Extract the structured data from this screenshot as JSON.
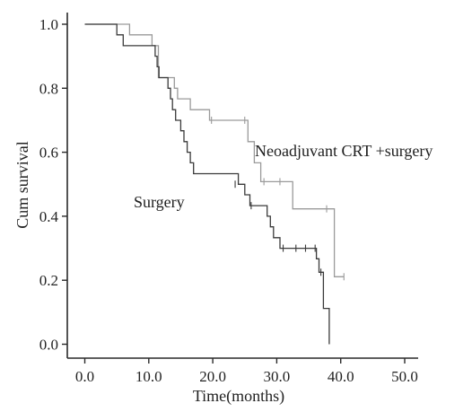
{
  "chart_data": {
    "type": "line",
    "subtype": "kaplan-meier step survival curve",
    "title": "",
    "xlabel": "Time(months)",
    "ylabel": "Cum survival",
    "xlim": [
      0,
      50
    ],
    "ylim": [
      0,
      1.0
    ],
    "x_ticks": [
      0,
      10,
      20,
      30,
      40,
      50
    ],
    "x_tick_labels": [
      "0.0",
      "10.0",
      "20.0",
      "30.0",
      "40.0",
      "50.0"
    ],
    "y_ticks": [
      0,
      0.2,
      0.4,
      0.6,
      0.8,
      1.0
    ],
    "y_tick_labels": [
      "0.0",
      "0.2",
      "0.4",
      "0.6",
      "0.8",
      "1.0"
    ],
    "grid": false,
    "legend": "none (series labeled directly on plot)",
    "series": [
      {
        "name": "Neoadjuvant CRT +surgery",
        "color": "#9a9a9a",
        "steps": [
          [
            0,
            1.0
          ],
          [
            7,
            0.967
          ],
          [
            10.5,
            0.933
          ],
          [
            11.5,
            0.833
          ],
          [
            14,
            0.8
          ],
          [
            14.5,
            0.767
          ],
          [
            16.5,
            0.733
          ],
          [
            19.5,
            0.7
          ],
          [
            25.5,
            0.633
          ],
          [
            26.5,
            0.567
          ],
          [
            27.5,
            0.508
          ],
          [
            32.5,
            0.423
          ],
          [
            39,
            0.211
          ]
        ],
        "end_x": 40.5,
        "censored": [
          [
            19.8,
            0.7
          ],
          [
            25,
            0.7
          ],
          [
            28,
            0.508
          ],
          [
            30.5,
            0.508
          ],
          [
            37.8,
            0.423
          ],
          [
            40.5,
            0.211
          ]
        ]
      },
      {
        "name": "Surgery",
        "color": "#3a3a3a",
        "steps": [
          [
            0,
            1.0
          ],
          [
            5,
            0.967
          ],
          [
            6,
            0.933
          ],
          [
            11,
            0.9
          ],
          [
            11.3,
            0.867
          ],
          [
            11.6,
            0.833
          ],
          [
            13,
            0.8
          ],
          [
            13.4,
            0.767
          ],
          [
            13.7,
            0.733
          ],
          [
            14.2,
            0.7
          ],
          [
            15,
            0.667
          ],
          [
            15.5,
            0.633
          ],
          [
            16,
            0.6
          ],
          [
            16.5,
            0.567
          ],
          [
            17,
            0.533
          ],
          [
            24,
            0.5
          ],
          [
            25,
            0.467
          ],
          [
            25.8,
            0.433
          ],
          [
            28.5,
            0.4
          ],
          [
            29,
            0.367
          ],
          [
            29.5,
            0.333
          ],
          [
            30.5,
            0.3
          ],
          [
            36.2,
            0.267
          ],
          [
            36.6,
            0.225
          ],
          [
            37.3,
            0.112
          ],
          [
            38.2,
            0.0
          ]
        ],
        "end_x": 38.2,
        "censored": [
          [
            23.5,
            0.5
          ],
          [
            26,
            0.433
          ],
          [
            31,
            0.3
          ],
          [
            33,
            0.3
          ],
          [
            34.5,
            0.3
          ],
          [
            36,
            0.3
          ],
          [
            36.9,
            0.225
          ]
        ]
      }
    ],
    "annotations": [
      {
        "text": "Neoadjuvant CRT +surgery",
        "series": "Neoadjuvant CRT +surgery",
        "anchor_x": 26.5,
        "anchor_y": 0.6
      },
      {
        "text": "Surgery",
        "series": "Surgery",
        "anchor_x": 7.8,
        "anchor_y": 0.43
      }
    ]
  }
}
